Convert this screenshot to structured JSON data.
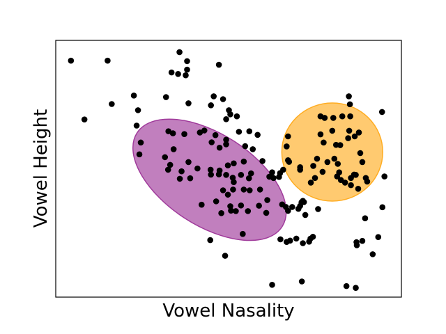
{
  "chart_data": {
    "type": "scatter",
    "xlabel": "Vowel Nasality",
    "ylabel": "Vowel Height",
    "xlim": [
      0,
      100
    ],
    "ylim": [
      0,
      100
    ],
    "ticks_visible": false,
    "grid": false,
    "point_color": "#000000",
    "points": [
      [
        4.4,
        92.1
      ],
      [
        15.0,
        92.1
      ],
      [
        16.2,
        75.2
      ],
      [
        8.3,
        69.2
      ],
      [
        22.6,
        78.5
      ],
      [
        23.8,
        72.8
      ],
      [
        23.4,
        66.8
      ],
      [
        24.6,
        60.2
      ],
      [
        24.2,
        55.6
      ],
      [
        35.8,
        95.4
      ],
      [
        33.5,
        87.5
      ],
      [
        35.4,
        86.9
      ],
      [
        37.6,
        86.4
      ],
      [
        38.0,
        91.9
      ],
      [
        38.0,
        88.6
      ],
      [
        47.2,
        90.5
      ],
      [
        31.9,
        77.9
      ],
      [
        38.4,
        75.5
      ],
      [
        44.9,
        74.7
      ],
      [
        45.7,
        78.2
      ],
      [
        48.4,
        77.1
      ],
      [
        50.1,
        72.8
      ],
      [
        50.5,
        71.2
      ],
      [
        52.4,
        70.4
      ],
      [
        49.3,
        69.3
      ],
      [
        43.0,
        64.9
      ],
      [
        46.2,
        63.1
      ],
      [
        47.4,
        58.2
      ],
      [
        53.0,
        64.4
      ],
      [
        56.0,
        64.6
      ],
      [
        58.4,
        63.2
      ],
      [
        37.2,
        63.5
      ],
      [
        32.6,
        64.6
      ],
      [
        33.9,
        63.8
      ],
      [
        34.1,
        57.6
      ],
      [
        31.6,
        54.5
      ],
      [
        32.5,
        49.6
      ],
      [
        33.1,
        51.5
      ],
      [
        36.4,
        49.0
      ],
      [
        38.4,
        52.6
      ],
      [
        35.9,
        46.1
      ],
      [
        38.9,
        46.3
      ],
      [
        41.7,
        64.1
      ],
      [
        45.1,
        60.3
      ],
      [
        49.3,
        61.3
      ],
      [
        49.3,
        59.5
      ],
      [
        54.8,
        58.8
      ],
      [
        54.4,
        52.8
      ],
      [
        57.0,
        57.6
      ],
      [
        59.8,
        53.0
      ],
      [
        63.0,
        46.4
      ],
      [
        62.6,
        48.6
      ],
      [
        64.6,
        46.8
      ],
      [
        47.4,
        49.3
      ],
      [
        49.8,
        51.3
      ],
      [
        51.2,
        46.5
      ],
      [
        51.5,
        52.1
      ],
      [
        49.3,
        47.6
      ],
      [
        44.9,
        47.7
      ],
      [
        48.4,
        41.6
      ],
      [
        51.3,
        41.9
      ],
      [
        51.5,
        44.8
      ],
      [
        53.6,
        47.6
      ],
      [
        55.9,
        46.3
      ],
      [
        56.5,
        48.2
      ],
      [
        47.2,
        47.8
      ],
      [
        49.8,
        39.9
      ],
      [
        54.4,
        41.9
      ],
      [
        56.1,
        41.6
      ],
      [
        59.1,
        41.9
      ],
      [
        53.6,
        35.7
      ],
      [
        52.1,
        33.5
      ],
      [
        50.5,
        35.4
      ],
      [
        46.4,
        37.3
      ],
      [
        42.2,
        36.0
      ],
      [
        41.0,
        50.1
      ],
      [
        61.2,
        37.8
      ],
      [
        60.9,
        32.8
      ],
      [
        55.6,
        33.5
      ],
      [
        58.8,
        35.6
      ],
      [
        61.8,
        46.9
      ],
      [
        64.9,
        48.3
      ],
      [
        65.8,
        49.6
      ],
      [
        67.2,
        53.3
      ],
      [
        66.8,
        58.7
      ],
      [
        67.2,
        62.6
      ],
      [
        65.5,
        36.1
      ],
      [
        66.6,
        35.1
      ],
      [
        67.2,
        33.6
      ],
      [
        68.4,
        35.1
      ],
      [
        70.2,
        34.4
      ],
      [
        71.5,
        37.5
      ],
      [
        72.2,
        32.0
      ],
      [
        71.1,
        36.9
      ],
      [
        67.5,
        52.7
      ],
      [
        70.7,
        49.6
      ],
      [
        70.7,
        50.6
      ],
      [
        73.8,
        44.6
      ],
      [
        75.0,
        46.4
      ],
      [
        74.5,
        51.1
      ],
      [
        75.6,
        53.9
      ],
      [
        75.9,
        34.3
      ],
      [
        76.6,
        63.4
      ],
      [
        77.5,
        60.2
      ],
      [
        76.6,
        70.4
      ],
      [
        77.8,
        69.8
      ],
      [
        80.3,
        69.8
      ],
      [
        82.9,
        70.4
      ],
      [
        85.2,
        70.4
      ],
      [
        84.8,
        78.2
      ],
      [
        85.1,
        75.1
      ],
      [
        80.0,
        64.8
      ],
      [
        82.3,
        59.2
      ],
      [
        84.9,
        64.8
      ],
      [
        86.5,
        62.6
      ],
      [
        88.1,
        56.1
      ],
      [
        88.7,
        52.6
      ],
      [
        84.6,
        61.9
      ],
      [
        87.7,
        64.1
      ],
      [
        81.1,
        59.3
      ],
      [
        80.6,
        53.9
      ],
      [
        78.6,
        52.6
      ],
      [
        77.2,
        48.8
      ],
      [
        81.6,
        51.9
      ],
      [
        81.4,
        47.0
      ],
      [
        82.0,
        48.6
      ],
      [
        86.3,
        47.7
      ],
      [
        86.8,
        47.6
      ],
      [
        89.7,
        46.4
      ],
      [
        82.5,
        45.6
      ],
      [
        83.7,
        44.6
      ],
      [
        85.4,
        46.4
      ],
      [
        85.4,
        43.6
      ],
      [
        90.1,
        45.0
      ],
      [
        87.5,
        42.2
      ],
      [
        94.4,
        72.1
      ],
      [
        95.1,
        47.0
      ],
      [
        89.5,
        30.7
      ],
      [
        87.1,
        20.2
      ],
      [
        91.7,
        16.7
      ],
      [
        94.5,
        35.0
      ],
      [
        70.7,
        35.5
      ],
      [
        71.8,
        37.0
      ],
      [
        67.8,
        22.0
      ],
      [
        65.0,
        22.5
      ],
      [
        66.8,
        21.5
      ],
      [
        69.6,
        22.8
      ],
      [
        73.7,
        22.8
      ],
      [
        71.5,
        21.0
      ],
      [
        74.4,
        23.5
      ],
      [
        73.3,
        21.6
      ],
      [
        87.0,
        21.4
      ],
      [
        88.7,
        21.9
      ],
      [
        93.3,
        23.4
      ],
      [
        44.7,
        22.2
      ],
      [
        62.6,
        4.8
      ],
      [
        71.2,
        6.1
      ],
      [
        84.1,
        4.3
      ],
      [
        86.8,
        3.6
      ],
      [
        49.0,
        16.1
      ],
      [
        54.1,
        24.6
      ],
      [
        47.9,
        32.7
      ],
      [
        50.7,
        33.7
      ],
      [
        44.8,
        49.6
      ]
    ],
    "ellipses": [
      {
        "name": "",
        "center": [
          44.5,
          45.7
        ],
        "rx_data": 25.0,
        "ry_data": 17.8,
        "angle_deg": 33,
        "color": "#a03b9b",
        "opacity": 0.65
      },
      {
        "name": "",
        "center": [
          80.0,
          56.5
        ],
        "rx_data": 14.6,
        "ry_data": 19.1,
        "angle_deg": 0,
        "color": "#ffad23",
        "opacity": 0.65
      }
    ]
  }
}
